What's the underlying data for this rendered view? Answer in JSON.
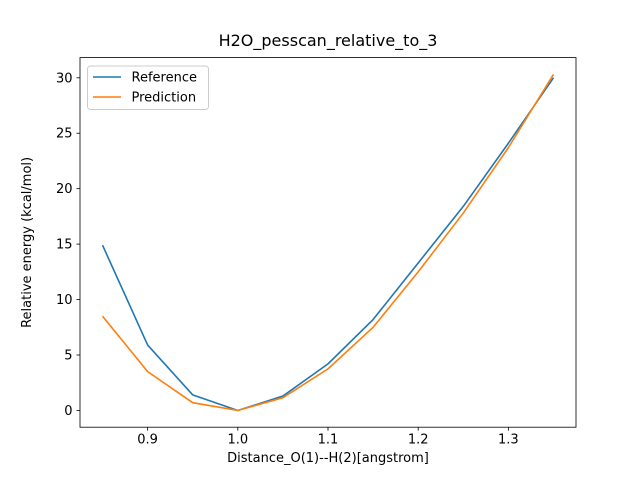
{
  "chart_data": {
    "type": "line",
    "title": "H2O_pesscan_relative_to_3",
    "xlabel": "Distance_O(1)--H(2)[angstrom]",
    "ylabel": "Relative energy (kcal/mol)",
    "x": [
      0.85,
      0.9,
      0.95,
      1.0,
      1.05,
      1.1,
      1.15,
      1.2,
      1.25,
      1.3,
      1.35
    ],
    "series": [
      {
        "name": "Reference",
        "color": "#1f77b4",
        "values": [
          14.9,
          5.9,
          1.4,
          0.0,
          1.3,
          4.2,
          8.2,
          13.3,
          18.4,
          24.1,
          30.0
        ]
      },
      {
        "name": "Prediction",
        "color": "#ff7f0e",
        "values": [
          8.5,
          3.5,
          0.7,
          0.0,
          1.15,
          3.75,
          7.5,
          12.5,
          17.8,
          23.7,
          30.3
        ]
      }
    ],
    "xlim": [
      0.825,
      1.375
    ],
    "ylim": [
      -1.51,
      31.82
    ],
    "xticks": {
      "values": [
        0.9,
        1.0,
        1.1,
        1.2,
        1.3
      ],
      "labels": [
        "0.9",
        "1.0",
        "1.1",
        "1.2",
        "1.3"
      ]
    },
    "yticks": {
      "values": [
        0,
        5,
        10,
        15,
        20,
        25,
        30
      ],
      "labels": [
        "0",
        "5",
        "10",
        "15",
        "20",
        "25",
        "30"
      ]
    },
    "grid": false,
    "legend": {
      "position": "upper-left",
      "border_color": "#cccccc",
      "background": "#ffffff"
    }
  }
}
